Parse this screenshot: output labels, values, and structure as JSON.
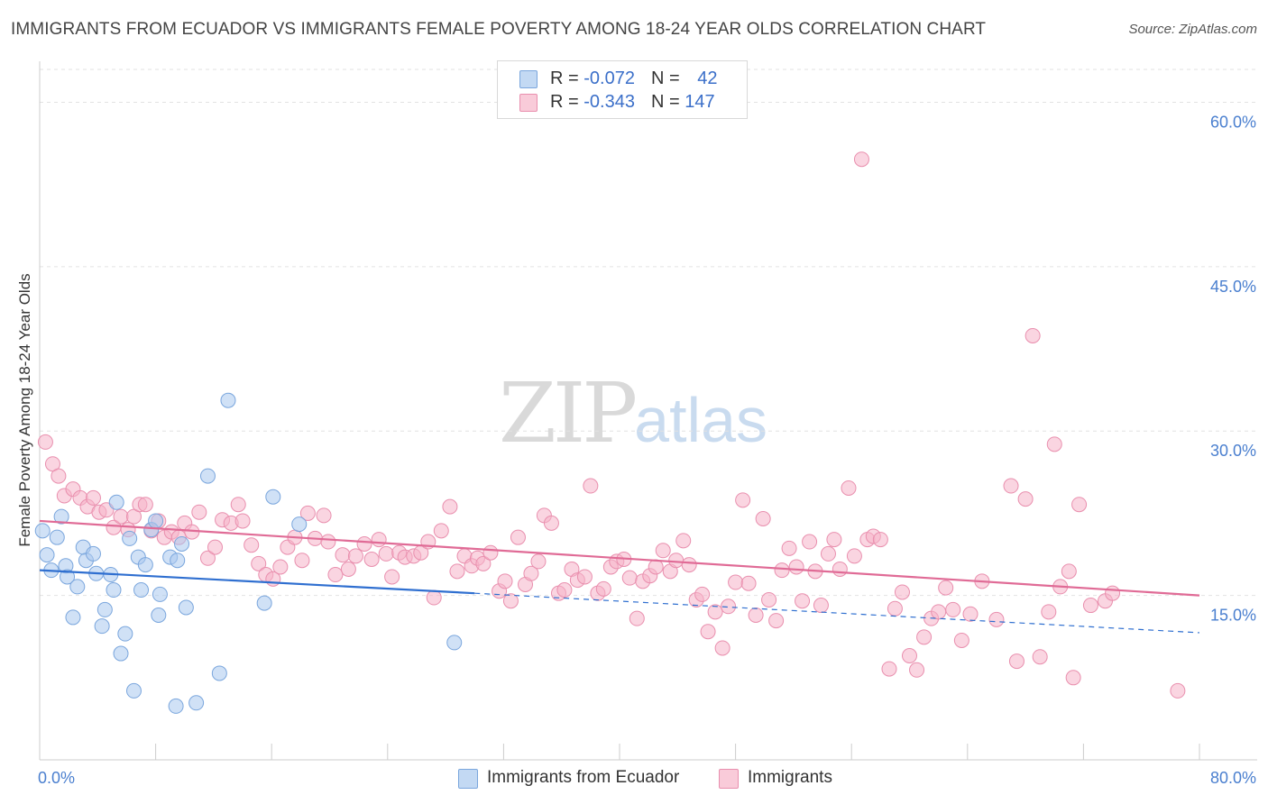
{
  "title": "IMMIGRANTS FROM ECUADOR VS IMMIGRANTS FEMALE POVERTY AMONG 18-24 YEAR OLDS CORRELATION CHART",
  "source": "Source: ZipAtlas.com",
  "watermark": {
    "zip": "ZIP",
    "atlas": "atlas"
  },
  "colors": {
    "blue_fill": "#a9c8ef",
    "blue_stroke": "#7aa6dd",
    "blue_line": "#2f6fd0",
    "pink_fill": "#f5b3c9",
    "pink_stroke": "#e98fae",
    "pink_line": "#e06b96",
    "grid": "#e2e2e2",
    "axis_text": "#4a7fcf"
  },
  "legend_top": [
    {
      "r_label": "R = ",
      "r_value": "-0.072",
      "n_label": "N = ",
      "n_value": "42"
    },
    {
      "r_label": "R = ",
      "r_value": "-0.343",
      "n_label": "N = ",
      "n_value": "147"
    }
  ],
  "legend_bottom": [
    "Immigrants from Ecuador",
    "Immigrants"
  ],
  "chart_data": {
    "type": "scatter",
    "title": "IMMIGRANTS FROM ECUADOR VS IMMIGRANTS FEMALE POVERTY AMONG 18-24 YEAR OLDS CORRELATION CHART",
    "xlabel": "",
    "ylabel": "Female Poverty Among 18-24 Year Olds",
    "xlim": [
      0,
      80
    ],
    "ylim": [
      0,
      63
    ],
    "x_tick_labels": [
      "0.0%",
      "80.0%"
    ],
    "y_ticks": [
      15,
      30,
      45,
      60
    ],
    "y_tick_labels": [
      "15.0%",
      "30.0%",
      "45.0%",
      "60.0%"
    ],
    "grid": true,
    "legend_position": "top-center",
    "series": [
      {
        "name": "Immigrants from Ecuador",
        "trend": {
          "x0": 0,
          "y0": 17.3,
          "x1": 30,
          "y1": 15.2,
          "dash_to_x": 80,
          "dash_to_y": 11.6
        },
        "points": [
          [
            0.2,
            20.9
          ],
          [
            0.5,
            18.7
          ],
          [
            0.8,
            17.3
          ],
          [
            1.2,
            20.3
          ],
          [
            1.5,
            22.2
          ],
          [
            1.8,
            17.7
          ],
          [
            1.9,
            16.7
          ],
          [
            2.3,
            13.0
          ],
          [
            2.6,
            15.8
          ],
          [
            3.0,
            19.4
          ],
          [
            3.2,
            18.2
          ],
          [
            3.7,
            18.8
          ],
          [
            3.9,
            17.0
          ],
          [
            4.3,
            12.2
          ],
          [
            4.5,
            13.7
          ],
          [
            4.9,
            16.9
          ],
          [
            5.1,
            15.5
          ],
          [
            5.3,
            23.5
          ],
          [
            5.6,
            9.7
          ],
          [
            5.9,
            11.5
          ],
          [
            6.2,
            20.2
          ],
          [
            6.5,
            6.3
          ],
          [
            6.8,
            18.5
          ],
          [
            7.0,
            15.5
          ],
          [
            7.3,
            17.8
          ],
          [
            7.7,
            21.0
          ],
          [
            8.0,
            21.8
          ],
          [
            8.2,
            13.2
          ],
          [
            8.3,
            15.1
          ],
          [
            9.0,
            18.5
          ],
          [
            9.4,
            4.9
          ],
          [
            9.5,
            18.2
          ],
          [
            9.8,
            19.7
          ],
          [
            10.1,
            13.9
          ],
          [
            10.8,
            5.2
          ],
          [
            11.6,
            25.9
          ],
          [
            12.4,
            7.9
          ],
          [
            13.0,
            32.8
          ],
          [
            15.5,
            14.3
          ],
          [
            16.1,
            24.0
          ],
          [
            17.9,
            21.5
          ],
          [
            28.6,
            10.7
          ]
        ]
      },
      {
        "name": "Immigrants",
        "trend": {
          "x0": 0,
          "y0": 21.8,
          "x1": 80,
          "y1": 15.0
        },
        "points": [
          [
            0.4,
            29.0
          ],
          [
            0.9,
            27.0
          ],
          [
            1.3,
            25.9
          ],
          [
            1.7,
            24.1
          ],
          [
            2.3,
            24.7
          ],
          [
            2.8,
            23.9
          ],
          [
            3.3,
            23.1
          ],
          [
            3.7,
            23.9
          ],
          [
            4.1,
            22.6
          ],
          [
            4.6,
            22.8
          ],
          [
            5.1,
            21.2
          ],
          [
            5.6,
            22.2
          ],
          [
            6.1,
            21.0
          ],
          [
            6.5,
            22.2
          ],
          [
            6.9,
            23.3
          ],
          [
            7.3,
            23.3
          ],
          [
            7.7,
            20.9
          ],
          [
            8.2,
            21.8
          ],
          [
            8.6,
            20.3
          ],
          [
            9.1,
            20.8
          ],
          [
            9.6,
            20.3
          ],
          [
            10.0,
            21.6
          ],
          [
            10.5,
            20.8
          ],
          [
            11.0,
            22.6
          ],
          [
            11.6,
            18.4
          ],
          [
            12.1,
            19.4
          ],
          [
            12.6,
            21.9
          ],
          [
            13.2,
            21.6
          ],
          [
            13.7,
            23.3
          ],
          [
            14.0,
            21.8
          ],
          [
            14.6,
            19.6
          ],
          [
            15.1,
            17.9
          ],
          [
            15.6,
            16.9
          ],
          [
            16.1,
            16.5
          ],
          [
            16.6,
            17.6
          ],
          [
            17.1,
            19.4
          ],
          [
            17.6,
            20.3
          ],
          [
            18.1,
            18.2
          ],
          [
            18.5,
            22.5
          ],
          [
            19.0,
            20.2
          ],
          [
            19.6,
            22.3
          ],
          [
            19.9,
            19.9
          ],
          [
            20.4,
            16.9
          ],
          [
            20.9,
            18.7
          ],
          [
            21.3,
            17.4
          ],
          [
            21.8,
            18.6
          ],
          [
            22.4,
            19.7
          ],
          [
            22.9,
            18.3
          ],
          [
            23.4,
            20.1
          ],
          [
            23.9,
            18.8
          ],
          [
            24.3,
            16.7
          ],
          [
            24.8,
            18.9
          ],
          [
            25.2,
            18.5
          ],
          [
            25.8,
            18.6
          ],
          [
            26.3,
            18.9
          ],
          [
            26.8,
            19.9
          ],
          [
            27.2,
            14.8
          ],
          [
            27.7,
            20.9
          ],
          [
            28.3,
            23.1
          ],
          [
            28.8,
            17.2
          ],
          [
            29.3,
            18.6
          ],
          [
            29.8,
            17.7
          ],
          [
            30.2,
            18.4
          ],
          [
            30.6,
            17.9
          ],
          [
            31.1,
            18.9
          ],
          [
            31.7,
            15.4
          ],
          [
            32.1,
            16.3
          ],
          [
            32.5,
            14.5
          ],
          [
            33.0,
            20.3
          ],
          [
            33.5,
            16.0
          ],
          [
            33.9,
            17.0
          ],
          [
            34.4,
            18.1
          ],
          [
            34.8,
            22.3
          ],
          [
            35.3,
            21.6
          ],
          [
            35.8,
            15.2
          ],
          [
            36.2,
            15.5
          ],
          [
            36.7,
            17.4
          ],
          [
            37.1,
            16.4
          ],
          [
            37.6,
            16.7
          ],
          [
            38.0,
            25.0
          ],
          [
            38.5,
            15.2
          ],
          [
            38.9,
            15.6
          ],
          [
            39.4,
            17.6
          ],
          [
            39.8,
            18.1
          ],
          [
            40.3,
            18.3
          ],
          [
            40.7,
            16.6
          ],
          [
            41.2,
            12.9
          ],
          [
            41.6,
            16.3
          ],
          [
            42.1,
            16.8
          ],
          [
            42.5,
            17.6
          ],
          [
            43.0,
            19.1
          ],
          [
            43.5,
            17.2
          ],
          [
            43.9,
            18.2
          ],
          [
            44.4,
            20.0
          ],
          [
            44.8,
            17.8
          ],
          [
            45.3,
            14.6
          ],
          [
            45.7,
            15.1
          ],
          [
            46.1,
            11.7
          ],
          [
            46.6,
            13.5
          ],
          [
            47.1,
            10.2
          ],
          [
            47.5,
            14.0
          ],
          [
            48.0,
            16.2
          ],
          [
            48.5,
            23.7
          ],
          [
            48.9,
            16.1
          ],
          [
            49.4,
            13.2
          ],
          [
            49.9,
            22.0
          ],
          [
            50.3,
            14.6
          ],
          [
            50.8,
            12.7
          ],
          [
            51.2,
            17.3
          ],
          [
            51.7,
            19.3
          ],
          [
            52.2,
            17.6
          ],
          [
            52.6,
            14.5
          ],
          [
            53.1,
            19.9
          ],
          [
            53.5,
            17.2
          ],
          [
            53.9,
            14.1
          ],
          [
            54.4,
            18.8
          ],
          [
            54.8,
            20.1
          ],
          [
            55.2,
            17.4
          ],
          [
            55.8,
            24.8
          ],
          [
            56.2,
            18.6
          ],
          [
            56.7,
            54.8
          ],
          [
            57.1,
            20.1
          ],
          [
            57.5,
            20.4
          ],
          [
            58.0,
            20.1
          ],
          [
            58.6,
            8.3
          ],
          [
            59.0,
            13.8
          ],
          [
            59.5,
            15.3
          ],
          [
            60.0,
            9.5
          ],
          [
            60.5,
            8.2
          ],
          [
            61.0,
            11.2
          ],
          [
            61.5,
            12.9
          ],
          [
            62.0,
            13.5
          ],
          [
            62.5,
            15.7
          ],
          [
            63.0,
            13.7
          ],
          [
            63.6,
            10.9
          ],
          [
            64.2,
            13.3
          ],
          [
            65.0,
            16.3
          ],
          [
            66.0,
            12.8
          ],
          [
            67.0,
            25.0
          ],
          [
            67.4,
            9.0
          ],
          [
            68.0,
            23.8
          ],
          [
            68.5,
            38.7
          ],
          [
            69.0,
            9.4
          ],
          [
            69.6,
            13.5
          ],
          [
            70.0,
            28.8
          ],
          [
            70.4,
            15.8
          ],
          [
            71.0,
            17.2
          ],
          [
            71.3,
            7.5
          ],
          [
            71.7,
            23.3
          ],
          [
            72.5,
            14.1
          ],
          [
            73.5,
            14.5
          ],
          [
            74.0,
            15.2
          ],
          [
            78.5,
            6.3
          ]
        ]
      }
    ]
  }
}
